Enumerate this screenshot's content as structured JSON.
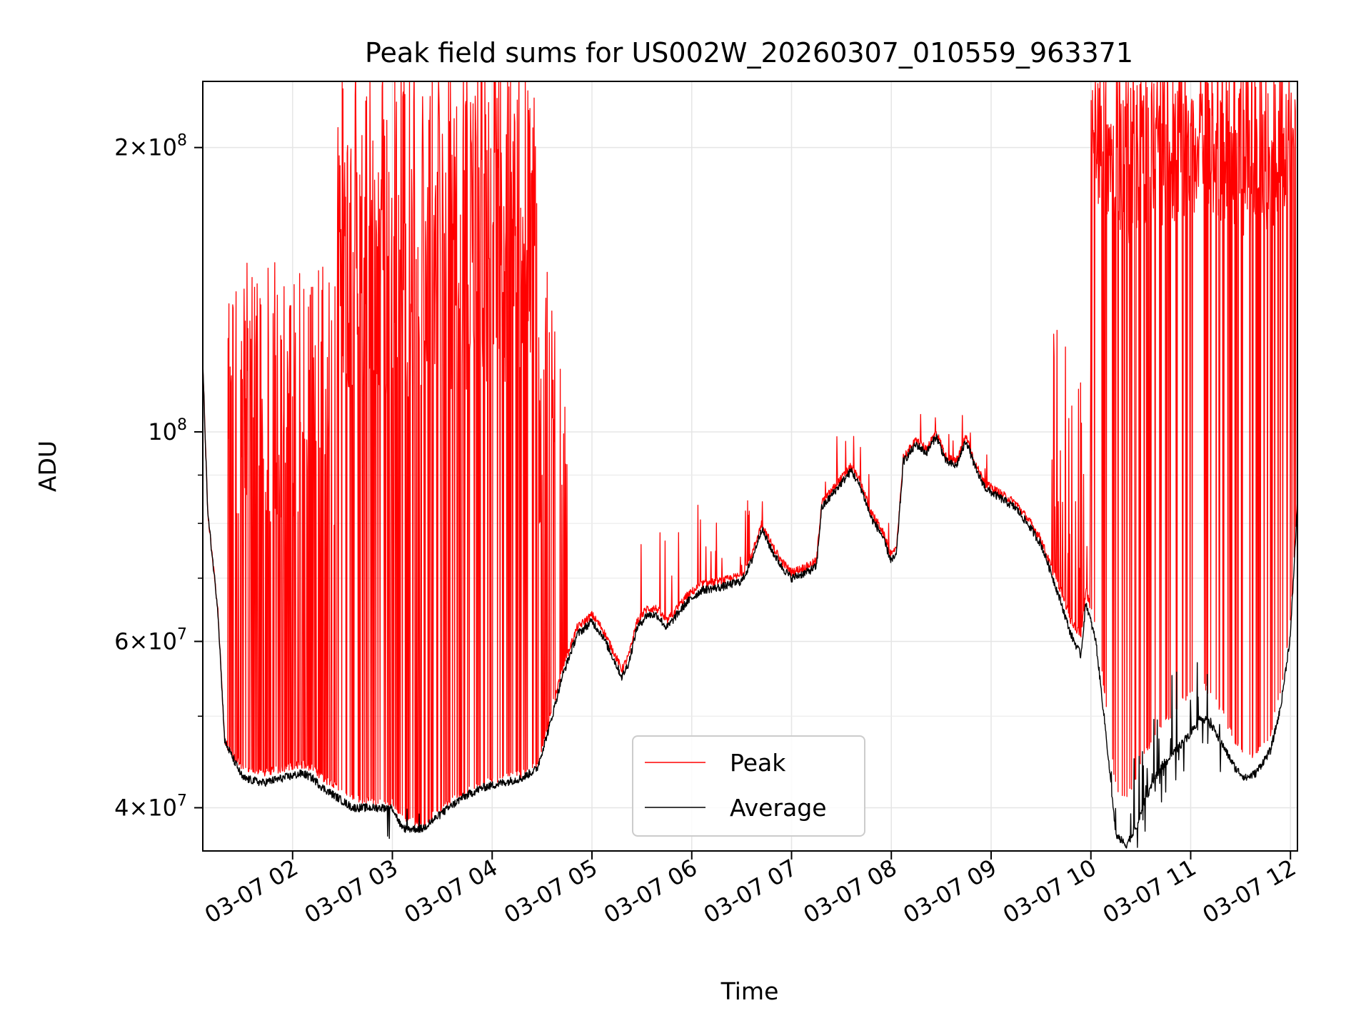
{
  "chart_data": {
    "type": "line",
    "title": "Peak field sums for US002W_20260307_010559_963371",
    "xlabel": "Time",
    "ylabel": "ADU",
    "y_scale": "log",
    "ylim": [
      36000000,
      235000000
    ],
    "xlim_hours": [
      1.1,
      12.07
    ],
    "grid": true,
    "legend_position": "lower-center",
    "x_ticks": [
      {
        "hour": 2,
        "label": "03-07 02"
      },
      {
        "hour": 3,
        "label": "03-07 03"
      },
      {
        "hour": 4,
        "label": "03-07 04"
      },
      {
        "hour": 5,
        "label": "03-07 05"
      },
      {
        "hour": 6,
        "label": "03-07 06"
      },
      {
        "hour": 7,
        "label": "03-07 07"
      },
      {
        "hour": 8,
        "label": "03-07 08"
      },
      {
        "hour": 9,
        "label": "03-07 09"
      },
      {
        "hour": 10,
        "label": "03-07 10"
      },
      {
        "hour": 11,
        "label": "03-07 11"
      },
      {
        "hour": 12,
        "label": "03-07 12"
      }
    ],
    "y_ticks": [
      {
        "value": 40000000,
        "mantissa": "4",
        "exponent": "7"
      },
      {
        "value": 60000000,
        "mantissa": "6",
        "exponent": "7"
      },
      {
        "value": 100000000,
        "mantissa": "",
        "exponent": "8"
      },
      {
        "value": 200000000,
        "mantissa": "2",
        "exponent": "8"
      }
    ],
    "y_minor_ticks": [
      50000000,
      70000000,
      80000000,
      90000000
    ],
    "times_symbol": "×",
    "series": [
      {
        "name": "Peak",
        "color": "#ff0000",
        "baseline": [
          [
            1.1,
            118000000
          ],
          [
            1.15,
            82000000
          ],
          [
            1.25,
            65000000
          ],
          [
            1.32,
            47000000
          ],
          [
            1.5,
            44000000
          ],
          [
            1.7,
            43500000
          ],
          [
            1.9,
            44000000
          ],
          [
            2.1,
            44500000
          ],
          [
            2.2,
            44000000
          ],
          [
            2.3,
            43000000
          ],
          [
            2.45,
            42000000
          ],
          [
            2.6,
            41000000
          ],
          [
            2.8,
            40500000
          ],
          [
            3.0,
            40500000
          ],
          [
            3.1,
            39000000
          ],
          [
            3.3,
            38500000
          ],
          [
            3.5,
            40000000
          ],
          [
            3.7,
            41500000
          ],
          [
            3.9,
            42500000
          ],
          [
            4.1,
            43000000
          ],
          [
            4.3,
            43500000
          ],
          [
            4.45,
            44500000
          ],
          [
            4.58,
            50000000
          ],
          [
            4.7,
            56000000
          ],
          [
            4.85,
            62000000
          ],
          [
            5.0,
            64000000
          ],
          [
            5.1,
            62000000
          ],
          [
            5.2,
            59000000
          ],
          [
            5.3,
            56000000
          ],
          [
            5.37,
            58000000
          ],
          [
            5.45,
            63000000
          ],
          [
            5.55,
            65000000
          ],
          [
            5.65,
            65000000
          ],
          [
            5.75,
            63000000
          ],
          [
            5.85,
            65000000
          ],
          [
            5.95,
            67000000
          ],
          [
            6.1,
            69000000
          ],
          [
            6.3,
            69500000
          ],
          [
            6.5,
            70500000
          ],
          [
            6.6,
            74000000
          ],
          [
            6.7,
            80000000
          ],
          [
            6.8,
            76000000
          ],
          [
            6.9,
            73000000
          ],
          [
            7.0,
            71000000
          ],
          [
            7.15,
            72000000
          ],
          [
            7.25,
            73000000
          ],
          [
            7.3,
            84000000
          ],
          [
            7.45,
            88000000
          ],
          [
            7.6,
            92000000
          ],
          [
            7.7,
            88000000
          ],
          [
            7.8,
            82000000
          ],
          [
            7.9,
            79000000
          ],
          [
            8.0,
            74000000
          ],
          [
            8.05,
            75000000
          ],
          [
            8.12,
            94000000
          ],
          [
            8.25,
            98000000
          ],
          [
            8.35,
            96000000
          ],
          [
            8.45,
            100000000
          ],
          [
            8.55,
            94000000
          ],
          [
            8.65,
            93000000
          ],
          [
            8.75,
            99000000
          ],
          [
            8.85,
            92000000
          ],
          [
            8.95,
            88000000
          ],
          [
            9.1,
            86000000
          ],
          [
            9.25,
            84000000
          ],
          [
            9.4,
            80000000
          ],
          [
            9.5,
            77000000
          ],
          [
            9.6,
            72000000
          ],
          [
            9.7,
            68000000
          ],
          [
            9.8,
            63000000
          ],
          [
            9.9,
            61000000
          ],
          [
            9.95,
            68000000
          ],
          [
            10.05,
            62000000
          ],
          [
            10.15,
            52000000
          ],
          [
            10.25,
            42000000
          ],
          [
            10.35,
            41000000
          ],
          [
            10.45,
            43000000
          ],
          [
            10.55,
            46000000
          ],
          [
            10.7,
            49000000
          ],
          [
            10.85,
            51000000
          ],
          [
            11.0,
            53000000
          ],
          [
            11.1,
            54000000
          ],
          [
            11.2,
            53000000
          ],
          [
            11.3,
            51000000
          ],
          [
            11.45,
            47000000
          ],
          [
            11.55,
            45000000
          ],
          [
            11.65,
            45500000
          ],
          [
            11.8,
            48000000
          ],
          [
            11.9,
            53000000
          ],
          [
            12.0,
            63000000
          ],
          [
            12.07,
            85000000
          ]
        ],
        "spike_regions": [
          [
            1.35,
            2.45,
            0.35,
            0.72
          ],
          [
            2.45,
            4.45,
            0.55,
            1.0
          ],
          [
            4.45,
            4.75,
            0.3,
            0.7
          ],
          [
            5.45,
            6.85,
            0.02,
            0.16
          ],
          [
            7.3,
            8.0,
            0.02,
            0.12
          ],
          [
            8.1,
            9.0,
            0.02,
            0.08
          ],
          [
            9.6,
            10.0,
            0.05,
            0.5
          ],
          [
            10.0,
            12.05,
            0.75,
            1.0
          ]
        ]
      },
      {
        "name": "Average",
        "color": "#000000",
        "baseline": [
          [
            1.1,
            118000000
          ],
          [
            1.15,
            82000000
          ],
          [
            1.25,
            65000000
          ],
          [
            1.32,
            47000000
          ],
          [
            1.5,
            43000000
          ],
          [
            1.7,
            42500000
          ],
          [
            1.9,
            43000000
          ],
          [
            2.1,
            43500000
          ],
          [
            2.2,
            43000000
          ],
          [
            2.3,
            42000000
          ],
          [
            2.45,
            41000000
          ],
          [
            2.6,
            40000000
          ],
          [
            2.8,
            40000000
          ],
          [
            3.0,
            40000000
          ],
          [
            3.1,
            38000000
          ],
          [
            3.3,
            38000000
          ],
          [
            3.5,
            39500000
          ],
          [
            3.7,
            41000000
          ],
          [
            3.9,
            42000000
          ],
          [
            4.1,
            42500000
          ],
          [
            4.3,
            43000000
          ],
          [
            4.45,
            44000000
          ],
          [
            4.58,
            49000000
          ],
          [
            4.7,
            55000000
          ],
          [
            4.85,
            61000000
          ],
          [
            5.0,
            63000000
          ],
          [
            5.1,
            61000000
          ],
          [
            5.2,
            58000000
          ],
          [
            5.3,
            55000000
          ],
          [
            5.37,
            57000000
          ],
          [
            5.45,
            62000000
          ],
          [
            5.55,
            64000000
          ],
          [
            5.65,
            64000000
          ],
          [
            5.75,
            62000000
          ],
          [
            5.85,
            64000000
          ],
          [
            5.95,
            66000000
          ],
          [
            6.1,
            68000000
          ],
          [
            6.3,
            68500000
          ],
          [
            6.5,
            69500000
          ],
          [
            6.6,
            73000000
          ],
          [
            6.7,
            79000000
          ],
          [
            6.8,
            75000000
          ],
          [
            6.9,
            72000000
          ],
          [
            7.0,
            70000000
          ],
          [
            7.15,
            71000000
          ],
          [
            7.25,
            72000000
          ],
          [
            7.3,
            83000000
          ],
          [
            7.45,
            87000000
          ],
          [
            7.6,
            91000000
          ],
          [
            7.7,
            87000000
          ],
          [
            7.8,
            81000000
          ],
          [
            7.9,
            78000000
          ],
          [
            8.0,
            73000000
          ],
          [
            8.05,
            74000000
          ],
          [
            8.12,
            93000000
          ],
          [
            8.25,
            97000000
          ],
          [
            8.35,
            95000000
          ],
          [
            8.45,
            99000000
          ],
          [
            8.55,
            93000000
          ],
          [
            8.65,
            92000000
          ],
          [
            8.75,
            98000000
          ],
          [
            8.85,
            91000000
          ],
          [
            8.95,
            87000000
          ],
          [
            9.1,
            85000000
          ],
          [
            9.25,
            83000000
          ],
          [
            9.4,
            79000000
          ],
          [
            9.5,
            76000000
          ],
          [
            9.6,
            71000000
          ],
          [
            9.7,
            66000000
          ],
          [
            9.8,
            61000000
          ],
          [
            9.9,
            58000000
          ],
          [
            9.95,
            66000000
          ],
          [
            10.05,
            60000000
          ],
          [
            10.15,
            48000000
          ],
          [
            10.25,
            37500000
          ],
          [
            10.35,
            36500000
          ],
          [
            10.45,
            38000000
          ],
          [
            10.55,
            41000000
          ],
          [
            10.7,
            44000000
          ],
          [
            10.85,
            46000000
          ],
          [
            11.0,
            48000000
          ],
          [
            11.1,
            50000000
          ],
          [
            11.2,
            49000000
          ],
          [
            11.3,
            47000000
          ],
          [
            11.45,
            44000000
          ],
          [
            11.55,
            43000000
          ],
          [
            11.65,
            43500000
          ],
          [
            11.8,
            46000000
          ],
          [
            11.9,
            51000000
          ],
          [
            12.0,
            61000000
          ],
          [
            12.07,
            84000000
          ]
        ],
        "spike_regions": [
          [
            2.95,
            3.6,
            0.0,
            0.12
          ],
          [
            10.2,
            11.3,
            0.0,
            0.5
          ]
        ]
      }
    ]
  }
}
